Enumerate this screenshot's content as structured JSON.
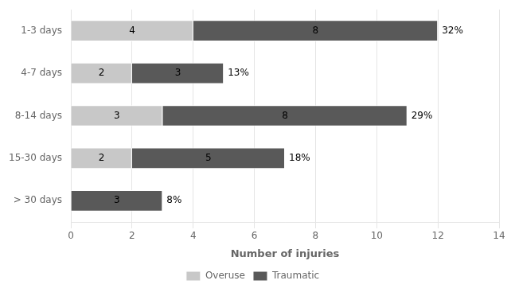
{
  "chart_data": {
    "type": "bar",
    "orientation": "horizontal",
    "stacked": true,
    "categories": [
      "1-3 days",
      "4-7 days",
      "8-14 days",
      "15-30 days",
      "> 30 days"
    ],
    "series": [
      {
        "name": "Overuse",
        "color": "#c8c8c8",
        "values": [
          4,
          2,
          3,
          2,
          0
        ]
      },
      {
        "name": "Traumatic",
        "color": "#595959",
        "values": [
          8,
          3,
          8,
          5,
          3
        ]
      }
    ],
    "annotations": [
      {
        "category": "1-3 days",
        "text": "32%"
      },
      {
        "category": "4-7 days",
        "text": "13%"
      },
      {
        "category": "8-14 days",
        "text": "29%"
      },
      {
        "category": "15-30 days",
        "text": "18%"
      },
      {
        "category": "> 30 days",
        "text": "8%"
      }
    ],
    "xlabel": "Number of injuries",
    "xlim": [
      0,
      14
    ],
    "xticks": [
      0,
      2,
      4,
      6,
      8,
      10,
      12,
      14
    ],
    "grid": "x",
    "legend": "bottom",
    "data_labels": true
  }
}
